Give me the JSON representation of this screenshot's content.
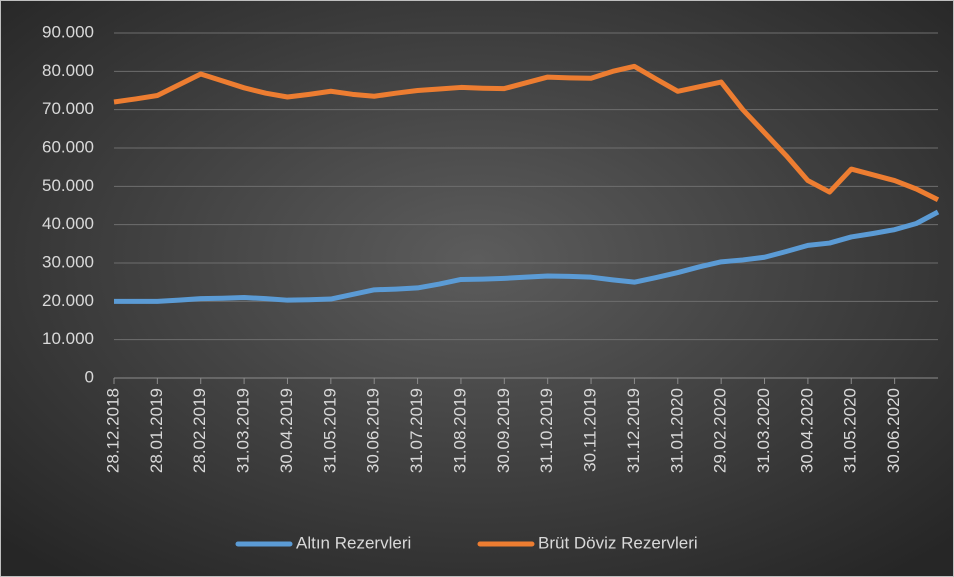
{
  "chart_data": {
    "type": "line",
    "categories": [
      "28.12.2018",
      null,
      "28.01.2019",
      null,
      "28.02.2019",
      null,
      "31.03.2019",
      null,
      "30.04.2019",
      null,
      "31.05.2019",
      null,
      "30.06.2019",
      null,
      "31.07.2019",
      null,
      "31.08.2019",
      null,
      "30.09.2019",
      null,
      "31.10.2019",
      null,
      "30.11.2019",
      null,
      "31.12.2019",
      null,
      "31.01.2020",
      null,
      "29.02.2020",
      null,
      "31.03.2020",
      null,
      "30.04.2020",
      null,
      "31.05.2020",
      null,
      "30.06.2020",
      null,
      null
    ],
    "series": [
      {
        "name": "Altın Rezervleri",
        "color": "#5b9bd5",
        "values": [
          20000,
          20000,
          20000,
          20300,
          20700,
          20800,
          21000,
          20700,
          20300,
          20400,
          20600,
          21800,
          23000,
          23200,
          23500,
          24500,
          25700,
          25800,
          26000,
          26300,
          26600,
          26500,
          26300,
          25600,
          25000,
          26200,
          27500,
          29000,
          30300,
          30800,
          31500,
          33000,
          34600,
          35200,
          36800,
          37700,
          38700,
          40300,
          43300
        ]
      },
      {
        "name": "Brüt Döviz Rezervleri",
        "color": "#ed7d31",
        "values": [
          72000,
          72800,
          73700,
          76500,
          79300,
          77500,
          75700,
          74300,
          73300,
          74000,
          74800,
          74000,
          73500,
          74300,
          75000,
          75400,
          75800,
          75600,
          75500,
          77000,
          78500,
          78300,
          78200,
          80000,
          81300,
          78000,
          74800,
          76000,
          77200,
          70000,
          64000,
          58000,
          51500,
          48500,
          54500,
          53000,
          51500,
          49300,
          46500
        ]
      }
    ],
    "ylim": [
      0,
      90000
    ],
    "yticks": [
      0,
      {
        "value": 10000,
        "label": "10.000"
      },
      {
        "value": 20000,
        "label": "20.000"
      },
      {
        "value": 30000,
        "label": "30.000"
      },
      {
        "value": 40000,
        "label": "40.000"
      },
      {
        "value": 50000,
        "label": "50.000"
      },
      {
        "value": 60000,
        "label": "60.000"
      },
      {
        "value": 70000,
        "label": "70.000"
      },
      {
        "value": 80000,
        "label": "80.000"
      },
      {
        "value": 90000,
        "label": "90.000"
      }
    ],
    "grid": true,
    "legend": "bottom"
  }
}
